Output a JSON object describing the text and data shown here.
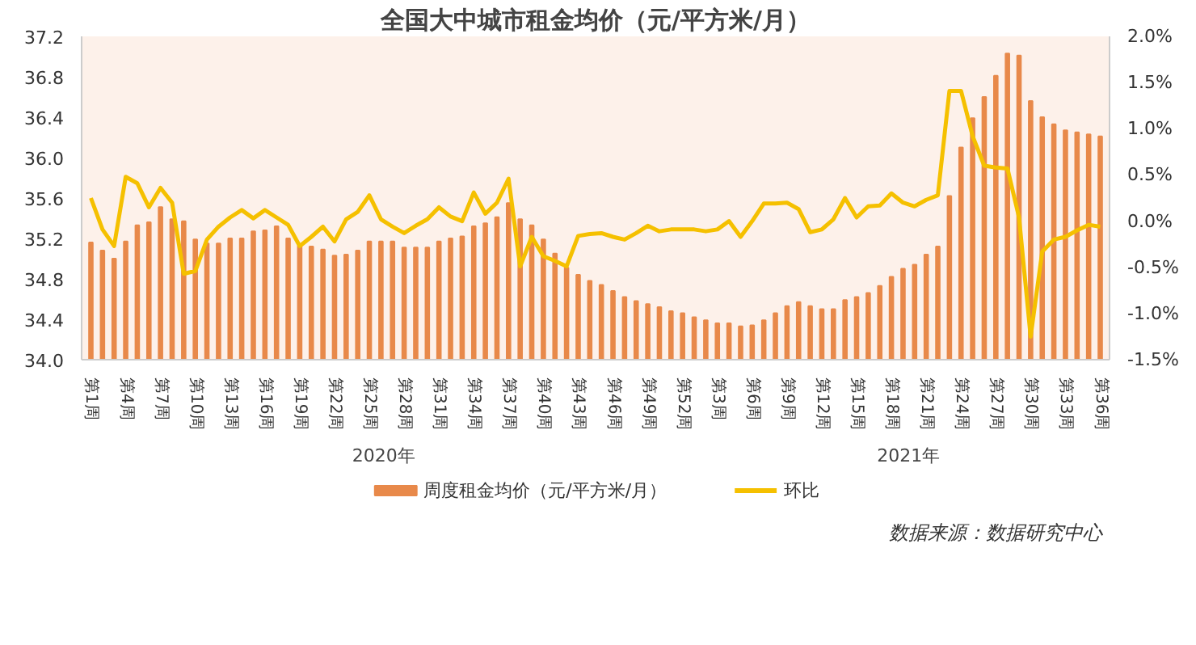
{
  "chart_data": {
    "type": "bar",
    "title": "全国大中城市租金均价（元/平方米/月）",
    "categories": [
      "第1周",
      null,
      null,
      "第4周",
      null,
      null,
      "第7周",
      null,
      null,
      "第10周",
      null,
      null,
      "第13周",
      null,
      null,
      "第16周",
      null,
      null,
      "第19周",
      null,
      null,
      "第22周",
      null,
      null,
      "第25周",
      null,
      null,
      "第28周",
      null,
      null,
      "第31周",
      null,
      null,
      "第34周",
      null,
      null,
      "第37周",
      null,
      null,
      "第40周",
      null,
      null,
      "第43周",
      null,
      null,
      "第46周",
      null,
      null,
      "第49周",
      null,
      null,
      "第52周",
      null,
      null,
      "第3周",
      null,
      null,
      "第6周",
      null,
      null,
      "第9周",
      null,
      null,
      "第12周",
      null,
      null,
      "第15周",
      null,
      null,
      "第18周",
      null,
      null,
      "第21周",
      null,
      null,
      "第24周",
      null,
      null,
      "第27周",
      null,
      null,
      "第30周",
      null,
      null,
      "第33周",
      null,
      null,
      "第36周"
    ],
    "series": [
      {
        "name": "周度租金均价（元/平方米/月）",
        "color": "#e8894a",
        "values": [
          35.16,
          35.08,
          35.0,
          35.17,
          35.33,
          35.36,
          35.51,
          35.39,
          35.37,
          35.19,
          35.15,
          35.15,
          35.2,
          35.2,
          35.27,
          35.28,
          35.32,
          35.2,
          35.13,
          35.12,
          35.09,
          35.03,
          35.04,
          35.08,
          35.17,
          35.17,
          35.17,
          35.11,
          35.11,
          35.11,
          35.17,
          35.2,
          35.22,
          35.32,
          35.35,
          35.41,
          35.55,
          35.39,
          35.33,
          35.19,
          35.05,
          34.91,
          34.84,
          34.78,
          34.74,
          34.68,
          34.62,
          34.58,
          34.55,
          34.52,
          34.48,
          34.46,
          34.42,
          34.39,
          34.36,
          34.36,
          34.33,
          34.34,
          34.39,
          34.46,
          34.53,
          34.57,
          34.53,
          34.5,
          34.5,
          34.59,
          34.62,
          34.66,
          34.73,
          34.82,
          34.9,
          34.94,
          35.04,
          35.12,
          35.62,
          36.1,
          36.39,
          36.6,
          36.81,
          37.03,
          37.01,
          36.56,
          36.4,
          36.33,
          36.27,
          36.25,
          36.23,
          36.21
        ]
      },
      {
        "name": "环比",
        "type": "line",
        "axis": "y2",
        "color": "#f5c000",
        "values": [
          0.25,
          -0.09,
          -0.27,
          0.48,
          0.41,
          0.15,
          0.36,
          0.2,
          -0.57,
          -0.54,
          -0.2,
          -0.06,
          0.04,
          0.12,
          0.03,
          0.12,
          0.04,
          -0.04,
          -0.27,
          -0.17,
          -0.06,
          -0.22,
          0.02,
          0.1,
          0.28,
          0.02,
          -0.06,
          -0.13,
          -0.05,
          0.02,
          0.15,
          0.05,
          0.0,
          0.31,
          0.08,
          0.2,
          0.46,
          -0.49,
          -0.17,
          -0.38,
          -0.43,
          -0.49,
          -0.16,
          -0.14,
          -0.13,
          -0.17,
          -0.2,
          -0.13,
          -0.05,
          -0.11,
          -0.09,
          -0.09,
          -0.09,
          -0.11,
          -0.09,
          0.0,
          -0.17,
          0.0,
          0.19,
          0.19,
          0.2,
          0.13,
          -0.12,
          -0.09,
          0.02,
          0.25,
          0.04,
          0.16,
          0.17,
          0.3,
          0.2,
          0.16,
          0.23,
          0.28,
          1.41,
          1.41,
          0.92,
          0.6,
          0.58,
          0.57,
          0.04,
          -1.25,
          -0.33,
          -0.2,
          -0.17,
          -0.1,
          -0.04,
          -0.06
        ]
      }
    ],
    "ylim": [
      34.0,
      37.2
    ],
    "yticks": [
      {
        "value": 34.0,
        "label": "34.0"
      },
      34.4,
      34.8,
      35.2,
      35.6,
      {
        "value": 36.0,
        "label": "36.0"
      },
      36.4,
      36.8,
      37.2
    ],
    "y2lim": [
      -1.5,
      2.0
    ],
    "y2ticks": [
      {
        "value": -1.5,
        "label": "-1.5%"
      },
      {
        "value": -1.0,
        "label": "-1.0%"
      },
      {
        "value": -0.5,
        "label": "-0.5%"
      },
      {
        "value": 0.0,
        "label": "0.0%"
      },
      {
        "value": 0.5,
        "label": "0.5%"
      },
      {
        "value": 1.0,
        "label": "1.0%"
      },
      {
        "value": 1.5,
        "label": "1.5%"
      },
      {
        "value": 2.0,
        "label": "2.0%"
      }
    ],
    "grid": false,
    "legend": "bottom",
    "marker": "none",
    "line_style": "solid",
    "annotations": [
      "2020年",
      "2021年",
      "数据来源：数据研究中心"
    ]
  }
}
